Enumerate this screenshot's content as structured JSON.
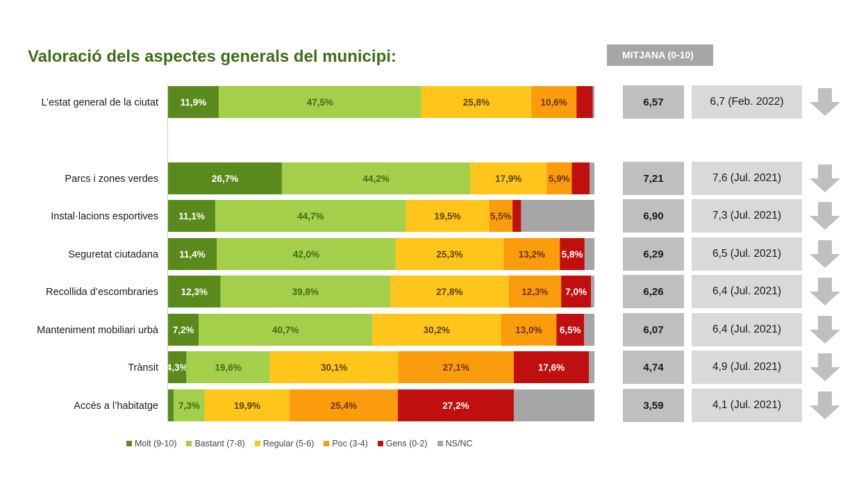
{
  "title": "Valoració dels aspectes generals del municipi:",
  "mitjana_header": "MITJANA (0-10)",
  "colors": {
    "molt": "#5a8a1c",
    "bastant": "#a4cf4a",
    "regular": "#ffc51b",
    "poc": "#fa9c0c",
    "gens": "#c00f0f",
    "nsnc": "#a6a6a6"
  },
  "legend": [
    {
      "key": "molt",
      "label": "Molt (9-10)"
    },
    {
      "key": "bastant",
      "label": "Bastant (7-8)"
    },
    {
      "key": "regular",
      "label": "Regular (5-6)"
    },
    {
      "key": "poc",
      "label": "Poc (3-4)"
    },
    {
      "key": "gens",
      "label": "Gens (0-2)"
    },
    {
      "key": "nsnc",
      "label": "NS/NC"
    }
  ],
  "chart_data": {
    "type": "bar",
    "orientation": "horizontal",
    "stacked": true,
    "unit": "%",
    "categories": [
      "L’estat general de la ciutat",
      "Parcs i zones verdes",
      "Instal·lacions esportives",
      "Seguretat ciutadana",
      "Recollida d’escombraries",
      "Manteniment mobiliari urbà",
      "Trànsit",
      "Accés a l’habitatge"
    ],
    "series": [
      {
        "name": "Molt (9-10)",
        "key": "molt",
        "values": [
          11.9,
          26.7,
          11.1,
          11.4,
          12.3,
          7.2,
          4.3,
          1.3
        ],
        "labels": [
          "11,9%",
          "26,7%",
          "11,1%",
          "11,4%",
          "12,3%",
          "7,2%",
          "4,3%",
          ""
        ]
      },
      {
        "name": "Bastant (7-8)",
        "key": "bastant",
        "values": [
          47.5,
          44.2,
          44.7,
          42.0,
          39.8,
          40.7,
          19.6,
          7.3
        ],
        "labels": [
          "47,5%",
          "44,2%",
          "44,7%",
          "42,0%",
          "39,8%",
          "40,7%",
          "19,6%",
          "7,3%"
        ]
      },
      {
        "name": "Regular (5-6)",
        "key": "regular",
        "values": [
          25.8,
          17.9,
          19.5,
          25.3,
          27.8,
          30.2,
          30.1,
          19.9
        ],
        "labels": [
          "25,8%",
          "17,9%",
          "19,5%",
          "25,3%",
          "27,8%",
          "30,2%",
          "30,1%",
          "19,9%"
        ]
      },
      {
        "name": "Poc (3-4)",
        "key": "poc",
        "values": [
          10.6,
          5.9,
          5.5,
          13.2,
          12.3,
          13.0,
          27.1,
          25.4
        ],
        "labels": [
          "10,6%",
          "5,9%",
          "5,5%",
          "13,2%",
          "12,3%",
          "13,0%",
          "27,1%",
          "25,4%"
        ]
      },
      {
        "name": "Gens (0-2)",
        "key": "gens",
        "values": [
          3.8,
          4.2,
          2.0,
          5.8,
          7.0,
          6.5,
          17.6,
          27.2
        ],
        "labels": [
          "",
          "",
          "",
          "5,8%",
          "7,0%",
          "6,5%",
          "17,6%",
          "27,2%"
        ]
      },
      {
        "name": "NS/NC",
        "key": "nsnc",
        "values": [
          0.4,
          1.1,
          17.2,
          2.3,
          0.8,
          2.4,
          1.3,
          18.9
        ],
        "labels": [
          "",
          "",
          "",
          "",
          "",
          "",
          "",
          ""
        ]
      }
    ],
    "xlim": [
      0,
      100
    ],
    "mitjana": [
      {
        "value": "6,57",
        "previous": "6,7 (Feb. 2022)",
        "trend": "down"
      },
      {
        "value": "7,21",
        "previous": "7,6 (Jul. 2021)",
        "trend": "down"
      },
      {
        "value": "6,90",
        "previous": "7,3 (Jul. 2021)",
        "trend": "down"
      },
      {
        "value": "6,29",
        "previous": "6,5 (Jul. 2021)",
        "trend": "down"
      },
      {
        "value": "6,26",
        "previous": "6,4 (Jul. 2021)",
        "trend": "down"
      },
      {
        "value": "6,07",
        "previous": "6,4 (Jul. 2021)",
        "trend": "down"
      },
      {
        "value": "4,74",
        "previous": "4,9 (Jul. 2021)",
        "trend": "down"
      },
      {
        "value": "3,59",
        "previous": "4,1 (Jul. 2021)",
        "trend": "down"
      }
    ]
  }
}
